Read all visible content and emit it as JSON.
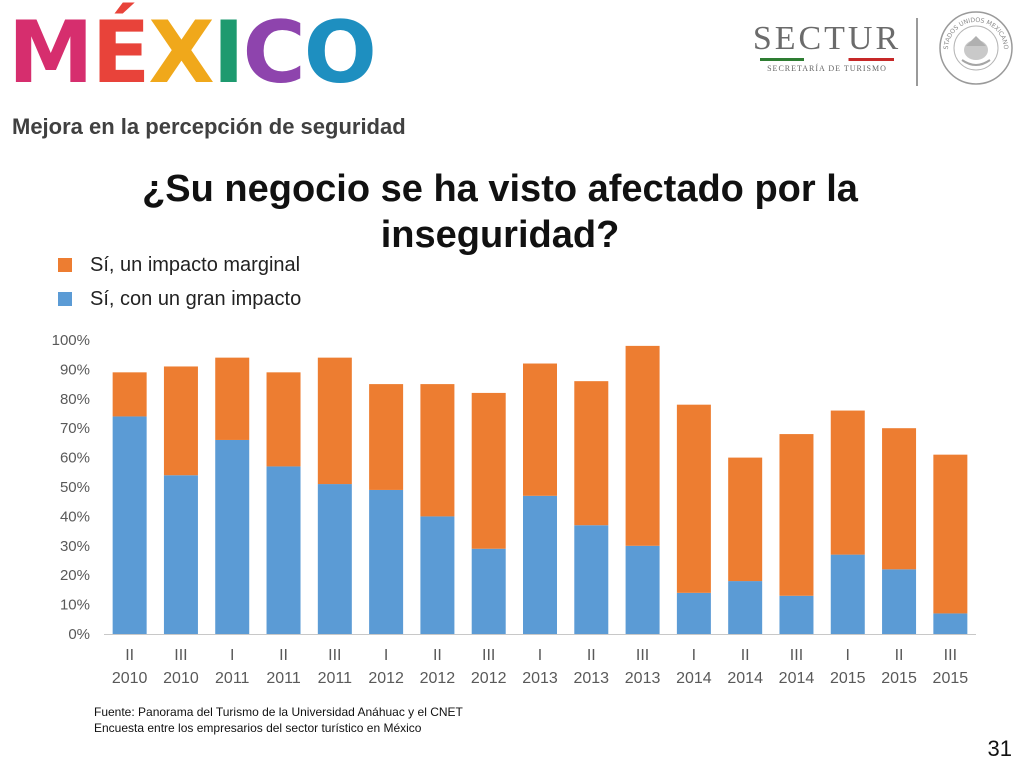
{
  "header": {
    "logo_letters": [
      "M",
      "É",
      "X",
      "I",
      "C",
      "O"
    ],
    "logo_colors": [
      "#d62e6e",
      "#e8433a",
      "#f0a81b",
      "#1e9a6f",
      "#8e44ad",
      "#1e8fc0"
    ],
    "sectur": {
      "name": "SECTUR",
      "subtitle": "SECRETARÍA DE TURISMO"
    },
    "seal_text": "ESTADOS UNIDOS MEXICANOS"
  },
  "subtitle": "Mejora en la percepción de seguridad",
  "title": "¿Su negocio se ha visto afectado por la inseguridad?",
  "legend": [
    {
      "label": "Sí, un impacto marginal",
      "color": "#ed7d31"
    },
    {
      "label": "Sí, con un gran impacto",
      "color": "#5b9bd5"
    }
  ],
  "chart_data": {
    "type": "bar",
    "stacked": true,
    "categories": [
      [
        "II",
        "2010"
      ],
      [
        "III",
        "2010"
      ],
      [
        "I",
        "2011"
      ],
      [
        "II",
        "2011"
      ],
      [
        "III",
        "2011"
      ],
      [
        "I",
        "2012"
      ],
      [
        "II",
        "2012"
      ],
      [
        "III",
        "2012"
      ],
      [
        "I",
        "2013"
      ],
      [
        "II",
        "2013"
      ],
      [
        "III",
        "2013"
      ],
      [
        "I",
        "2014"
      ],
      [
        "II",
        "2014"
      ],
      [
        "III",
        "2014"
      ],
      [
        "I",
        "2015"
      ],
      [
        "II",
        "2015"
      ],
      [
        "III",
        "2015"
      ]
    ],
    "series": [
      {
        "name": "Sí, con un gran impacto",
        "color": "#5b9bd5",
        "values": [
          74,
          54,
          66,
          57,
          51,
          49,
          40,
          29,
          47,
          37,
          30,
          14,
          18,
          13,
          27,
          22,
          7
        ]
      },
      {
        "name": "Sí, un impacto marginal",
        "color": "#ed7d31",
        "values": [
          15,
          37,
          28,
          32,
          43,
          36,
          45,
          53,
          45,
          49,
          68,
          64,
          42,
          55,
          49,
          48,
          54
        ]
      }
    ],
    "yticks": [
      "0%",
      "10%",
      "20%",
      "30%",
      "40%",
      "50%",
      "60%",
      "70%",
      "80%",
      "90%",
      "100%"
    ],
    "ylim": [
      0,
      100
    ],
    "grid": false,
    "xlabel": "",
    "ylabel": ""
  },
  "source": {
    "line1": "Fuente: Panorama del Turismo de la Universidad Anáhuac y el CNET",
    "line2": "Encuesta entre los empresarios del sector turístico en México"
  },
  "page_number": "31"
}
